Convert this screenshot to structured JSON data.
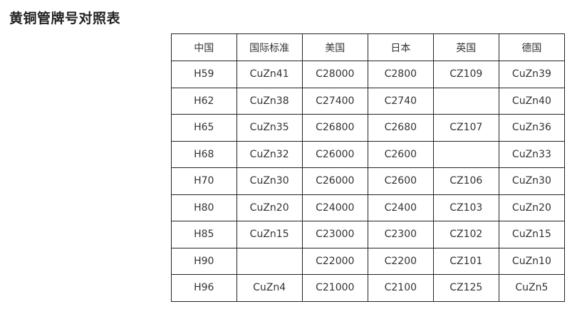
{
  "title": "黄铜管牌号对照表",
  "table": {
    "headers": [
      "中国",
      "国际标准",
      "美国",
      "日本",
      "英国",
      "德国"
    ],
    "rows": [
      [
        "H59",
        "CuZn41",
        "C28000",
        "C2800",
        "CZ109",
        "CuZn39"
      ],
      [
        "H62",
        "CuZn38",
        "C27400",
        "C2740",
        "",
        "CuZn40"
      ],
      [
        "H65",
        "CuZn35",
        "C26800",
        "C2680",
        "CZ107",
        "CuZn36"
      ],
      [
        "H68",
        "CuZn32",
        "C26000",
        "C2600",
        "",
        "CuZn33"
      ],
      [
        "H70",
        "CuZn30",
        "C26000",
        "C2600",
        "CZ106",
        "CuZn30"
      ],
      [
        "H80",
        "CuZn20",
        "C24000",
        "C2400",
        "CZ103",
        "CuZn20"
      ],
      [
        "H85",
        "CuZn15",
        "C23000",
        "C2300",
        "CZ102",
        "CuZn15"
      ],
      [
        "H90",
        "",
        "C22000",
        "C2200",
        "CZ101",
        "CuZn10"
      ],
      [
        "H96",
        "CuZn4",
        "C21000",
        "C2100",
        "CZ125",
        "CuZn5"
      ]
    ]
  }
}
